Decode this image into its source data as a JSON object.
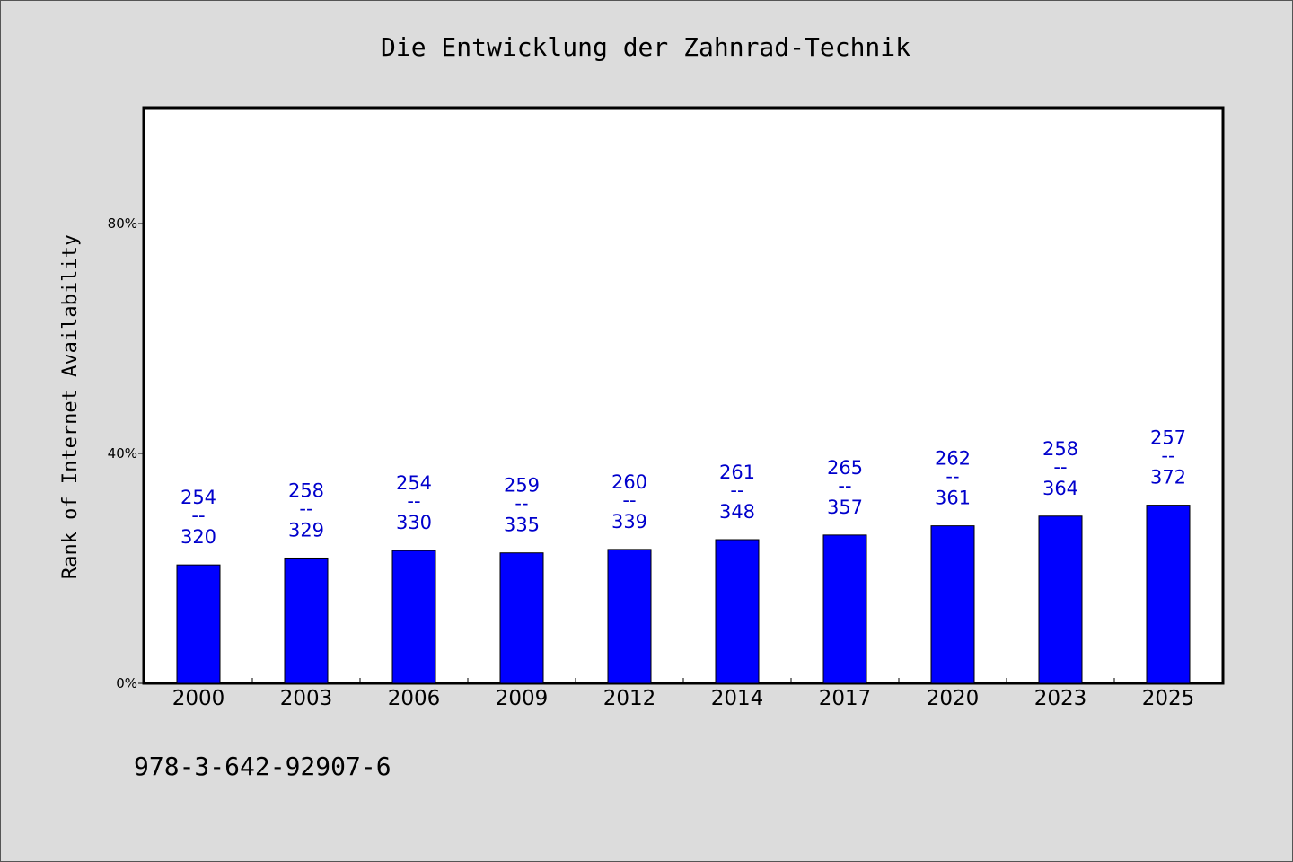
{
  "chart_data": {
    "type": "bar",
    "title": "Die Entwicklung der Zahnrad-Technik",
    "xlabel": "",
    "ylabel": "Rank of Internet Availability",
    "categories": [
      "2000",
      "2003",
      "2006",
      "2009",
      "2012",
      "2014",
      "2017",
      "2020",
      "2023",
      "2025"
    ],
    "values": [
      20.6,
      21.8,
      23.1,
      22.7,
      23.3,
      25.0,
      25.8,
      27.4,
      29.1,
      31.0
    ],
    "value_format": "percent",
    "data_labels": [
      {
        "top": "254",
        "sep": "--",
        "bottom": "320"
      },
      {
        "top": "258",
        "sep": "--",
        "bottom": "329"
      },
      {
        "top": "254",
        "sep": "--",
        "bottom": "330"
      },
      {
        "top": "259",
        "sep": "--",
        "bottom": "335"
      },
      {
        "top": "260",
        "sep": "--",
        "bottom": "339"
      },
      {
        "top": "261",
        "sep": "--",
        "bottom": "348"
      },
      {
        "top": "265",
        "sep": "--",
        "bottom": "357"
      },
      {
        "top": "262",
        "sep": "--",
        "bottom": "361"
      },
      {
        "top": "258",
        "sep": "--",
        "bottom": "364"
      },
      {
        "top": "257",
        "sep": "--",
        "bottom": "372"
      }
    ],
    "yticks": [
      0,
      40,
      80
    ],
    "ytick_labels": [
      "0%",
      "40%",
      "80%"
    ],
    "ylim": [
      0,
      100
    ],
    "grid": false,
    "bar_color": "#0000ff",
    "label_color": "#0000cc"
  },
  "footer": {
    "isbn": "978-3-642-92907-6"
  },
  "colors": {
    "page_background": "#dcdcdc",
    "plot_background": "#ffffff"
  }
}
